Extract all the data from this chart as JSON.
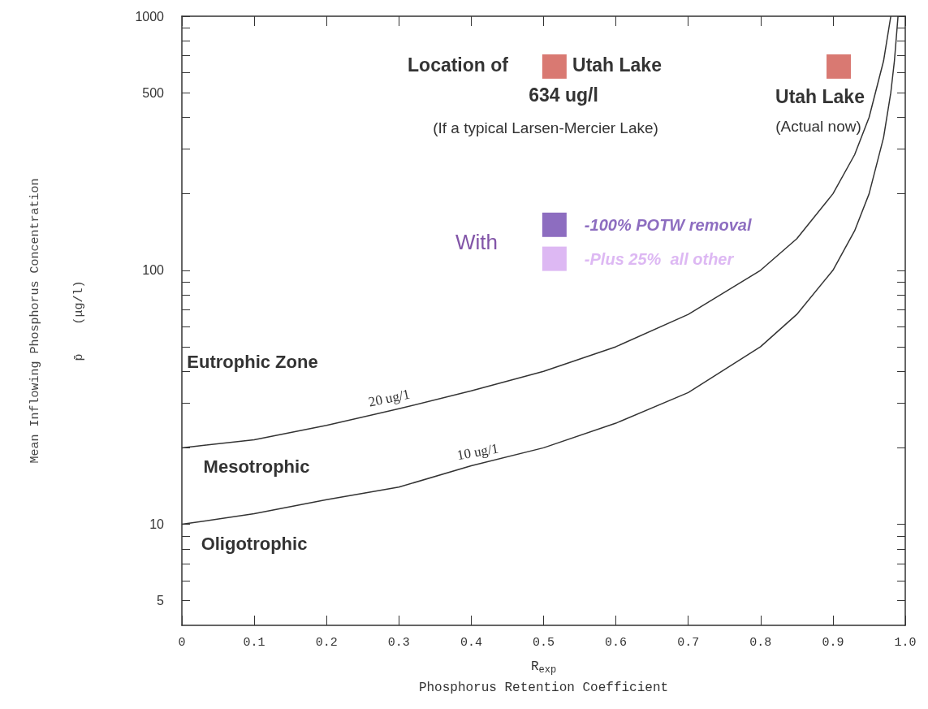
{
  "chart_data": {
    "type": "line",
    "xlabel": "R$_{exp}$\nPhosphorus Retention Coefficient",
    "ylabel": "Mean Inflowing Phosphorus Concentration\np̄    (μg/l)",
    "xlim": [
      0,
      1
    ],
    "xticks": [
      0,
      0.1,
      0.2,
      0.3,
      0.4,
      0.5,
      0.6,
      0.7,
      0.8,
      0.9,
      {
        "value": 1,
        "label": "1.0"
      }
    ],
    "ylim": [
      4,
      1000
    ],
    "yticks": [
      5,
      {
        "value": 6,
        "label": null
      },
      {
        "value": 7,
        "label": null
      },
      {
        "value": 8,
        "label": null
      },
      {
        "value": 9,
        "label": null
      },
      10,
      {
        "value": 20,
        "label": null
      },
      {
        "value": 30,
        "label": null
      },
      {
        "value": 40,
        "label": null
      },
      {
        "value": 50,
        "label": null
      },
      {
        "value": 60,
        "label": null
      },
      {
        "value": 70,
        "label": null
      },
      {
        "value": 80,
        "label": null
      },
      {
        "value": 90,
        "label": null
      },
      100,
      {
        "value": 200,
        "label": null
      },
      {
        "value": 300,
        "label": null
      },
      {
        "value": 400,
        "label": null
      },
      500,
      {
        "value": 600,
        "label": null
      },
      {
        "value": 700,
        "label": null
      },
      {
        "value": 800,
        "label": null
      },
      {
        "value": 900,
        "label": null
      },
      1000
    ],
    "log": "y",
    "grid": false,
    "legend": false,
    "annotations": [
      "Location of",
      "Utah Lake",
      "634 ug/l",
      "(If a typical Larsen-Mercier Lake)",
      "Utah Lake",
      "(Actual now)",
      "With",
      "Eutrophic Zone",
      "Mesotrophic",
      "Oligotrophic"
    ],
    "series": [
      {
        "name": "20 ug/1",
        "color": "#333333",
        "marker": "none",
        "line_style": "solid",
        "x": [
          0,
          0.1,
          0.2,
          0.3,
          0.4,
          0.5,
          0.6,
          0.7,
          0.8,
          0.85,
          0.9,
          0.93,
          0.95,
          0.97,
          0.98
        ],
        "values": [
          20,
          21.5,
          24.5,
          28.5,
          33.5,
          40,
          50,
          67,
          100,
          133,
          200,
          285,
          400,
          667,
          1000
        ]
      },
      {
        "name": "10 ug/1",
        "color": "#333333",
        "marker": "none",
        "line_style": "solid",
        "x": [
          0,
          0.1,
          0.2,
          0.3,
          0.4,
          0.5,
          0.6,
          0.7,
          0.8,
          0.85,
          0.9,
          0.93,
          0.95,
          0.97,
          0.98,
          0.985,
          0.99
        ],
        "values": [
          10,
          11,
          12.5,
          14,
          17,
          20,
          25,
          33,
          50,
          67,
          100,
          143,
          200,
          333,
          500,
          667,
          1000
        ]
      },
      {
        "type": "scatter",
        "marker": "square",
        "color": "#d0574f",
        "x": [
          0.515,
          0.908
        ],
        "values": [
          634,
          634
        ]
      },
      {
        "name": "-100% POTW removal",
        "type": "scatter",
        "marker": "square",
        "color": "#7048b0",
        "x": [
          0.515
        ],
        "values": [
          151
        ]
      },
      {
        "name": "-Plus 25%  all other",
        "type": "scatter",
        "marker": "square",
        "color": "#d4a6f0",
        "x": [
          0.515
        ],
        "values": [
          111
        ]
      }
    ]
  }
}
